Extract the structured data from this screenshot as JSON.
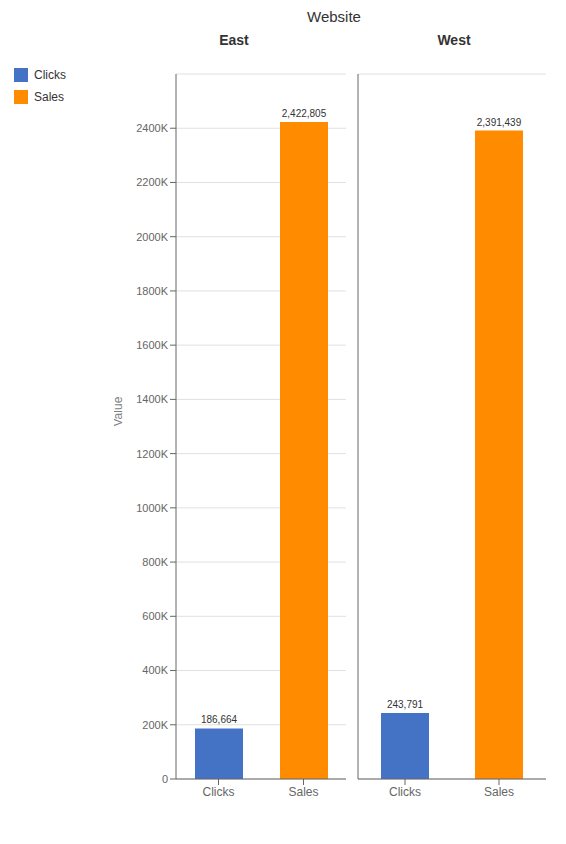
{
  "title": "Website",
  "legend": "left",
  "chart_data": [
    {
      "type": "bar",
      "title": "East",
      "categories": [
        "Clicks",
        "Sales"
      ],
      "values": [
        186664,
        2422805
      ],
      "value_labels": [
        "186,664",
        "2,422,805"
      ],
      "colors": [
        "#4472C4",
        "#FF8C00"
      ],
      "ylabel": "Value",
      "ylim": [
        0,
        2600000
      ],
      "yticks": [
        0,
        {
          "value": 200000,
          "label": "200K"
        },
        {
          "value": 400000,
          "label": "400K"
        },
        {
          "value": 600000,
          "label": "600K"
        },
        {
          "value": 800000,
          "label": "800K"
        },
        {
          "value": 1000000,
          "label": "1000K"
        },
        {
          "value": 1200000,
          "label": "1200K"
        },
        {
          "value": 1400000,
          "label": "1400K"
        },
        {
          "value": 1600000,
          "label": "1600K"
        },
        {
          "value": 1800000,
          "label": "1800K"
        },
        {
          "value": 2000000,
          "label": "2000K"
        },
        {
          "value": 2200000,
          "label": "2200K"
        },
        {
          "value": 2400000,
          "label": "2400K"
        }
      ],
      "grid": true,
      "data_labels": true
    },
    {
      "type": "bar",
      "title": "West",
      "categories": [
        "Clicks",
        "Sales"
      ],
      "values": [
        243791,
        2391439
      ],
      "value_labels": [
        "243,791",
        "2,391,439"
      ],
      "colors": [
        "#4472C4",
        "#FF8C00"
      ],
      "ylim": [
        0,
        2600000
      ],
      "yticks": [
        0,
        {
          "value": 200000,
          "label": "200K"
        },
        {
          "value": 400000,
          "label": "400K"
        },
        {
          "value": 600000,
          "label": "600K"
        },
        {
          "value": 800000,
          "label": "800K"
        },
        {
          "value": 1000000,
          "label": "1000K"
        },
        {
          "value": 1200000,
          "label": "1200K"
        },
        {
          "value": 1400000,
          "label": "1400K"
        },
        {
          "value": 1600000,
          "label": "1600K"
        },
        {
          "value": 1800000,
          "label": "1800K"
        },
        {
          "value": 2000000,
          "label": "2000K"
        },
        {
          "value": 2200000,
          "label": "2200K"
        },
        {
          "value": 2400000,
          "label": "2400K"
        }
      ],
      "grid": true,
      "data_labels": true,
      "tick_labels": "x"
    }
  ]
}
